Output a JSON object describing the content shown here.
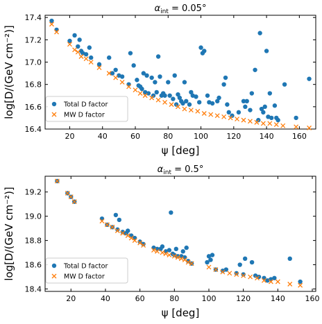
{
  "chart_data": [
    {
      "type": "scatter",
      "title": "α_int = 0.05°",
      "title_prefix": "α",
      "title_sub": "int",
      "title_suffix": " = 0.05°",
      "xlabel": "ψ [deg]",
      "ylabel": "log[D/(GeV cm⁻²)]",
      "xlim": [
        5,
        170
      ],
      "ylim": [
        16.4,
        17.42
      ],
      "xticks": [
        "20",
        "40",
        "60",
        "80",
        "100",
        "120",
        "140",
        "160"
      ],
      "yticks": [
        "16.4",
        "16.6",
        "16.8",
        "17.0",
        "17.2",
        "17.4"
      ],
      "grid": false,
      "legend_position": "lower-left",
      "series": [
        {
          "name": "Total D factor",
          "marker": "circle",
          "color": "#1f77b4",
          "points": [
            [
              9,
              17.37
            ],
            [
              12,
              17.29
            ],
            [
              20,
              17.19
            ],
            [
              23,
              17.24
            ],
            [
              25,
              17.14
            ],
            [
              26,
              17.2
            ],
            [
              27,
              17.1
            ],
            [
              28,
              17.08
            ],
            [
              30,
              17.07
            ],
            [
              32,
              17.13
            ],
            [
              33,
              17.04
            ],
            [
              38,
              16.98
            ],
            [
              44,
              17.04
            ],
            [
              46,
              16.9
            ],
            [
              48,
              16.93
            ],
            [
              50,
              16.88
            ],
            [
              52,
              16.87
            ],
            [
              56,
              16.8
            ],
            [
              57,
              17.08
            ],
            [
              59,
              16.97
            ],
            [
              61,
              16.84
            ],
            [
              62,
              16.79
            ],
            [
              63,
              16.78
            ],
            [
              64,
              16.76
            ],
            [
              65,
              16.9
            ],
            [
              66,
              16.73
            ],
            [
              67,
              16.88
            ],
            [
              68,
              16.72
            ],
            [
              70,
              16.86
            ],
            [
              71,
              16.7
            ],
            [
              72,
              16.82
            ],
            [
              73,
              16.73
            ],
            [
              74,
              17.05
            ],
            [
              75,
              16.87
            ],
            [
              76,
              16.7
            ],
            [
              77,
              16.72
            ],
            [
              78,
              16.7
            ],
            [
              80,
              16.82
            ],
            [
              81,
              16.7
            ],
            [
              83,
              16.67
            ],
            [
              84,
              16.88
            ],
            [
              85,
              16.62
            ],
            [
              86,
              16.71
            ],
            [
              87,
              16.68
            ],
            [
              88,
              16.65
            ],
            [
              89,
              16.63
            ],
            [
              90,
              16.82
            ],
            [
              91,
              16.65
            ],
            [
              93,
              16.62
            ],
            [
              94,
              16.73
            ],
            [
              95,
              16.7
            ],
            [
              97,
              16.69
            ],
            [
              99,
              16.64
            ],
            [
              100,
              17.13
            ],
            [
              101,
              17.08
            ],
            [
              102,
              17.1
            ],
            [
              104,
              16.7
            ],
            [
              105,
              16.64
            ],
            [
              107,
              16.63
            ],
            [
              110,
              16.65
            ],
            [
              111,
              16.68
            ],
            [
              114,
              16.8
            ],
            [
              115,
              16.86
            ],
            [
              116,
              16.62
            ],
            [
              117,
              16.55
            ],
            [
              119,
              16.52
            ],
            [
              123,
              16.55
            ],
            [
              126,
              16.65
            ],
            [
              127,
              16.6
            ],
            [
              128,
              16.65
            ],
            [
              130,
              16.57
            ],
            [
              131,
              16.72
            ],
            [
              133,
              16.93
            ],
            [
              135,
              16.48
            ],
            [
              136,
              17.26
            ],
            [
              137,
              16.58
            ],
            [
              138,
              16.55
            ],
            [
              139,
              16.6
            ],
            [
              140,
              17.1
            ],
            [
              141,
              16.51
            ],
            [
              142,
              16.72
            ],
            [
              143,
              16.5
            ],
            [
              145,
              16.61
            ],
            [
              146,
              16.5
            ],
            [
              147,
              16.48
            ],
            [
              151,
              16.8
            ],
            [
              158,
              16.5
            ],
            [
              166,
              16.85
            ]
          ]
        },
        {
          "name": "MW D factor",
          "marker": "x",
          "color": "#ff7f0e",
          "points": [
            [
              9,
              17.34
            ],
            [
              12,
              17.27
            ],
            [
              20,
              17.16
            ],
            [
              23,
              17.11
            ],
            [
              25,
              17.09
            ],
            [
              27,
              17.05
            ],
            [
              30,
              17.03
            ],
            [
              33,
              17.0
            ],
            [
              38,
              16.95
            ],
            [
              44,
              16.9
            ],
            [
              48,
              16.86
            ],
            [
              52,
              16.82
            ],
            [
              56,
              16.78
            ],
            [
              60,
              16.75
            ],
            [
              63,
              16.72
            ],
            [
              66,
              16.7
            ],
            [
              70,
              16.68
            ],
            [
              74,
              16.66
            ],
            [
              78,
              16.64
            ],
            [
              82,
              16.62
            ],
            [
              86,
              16.6
            ],
            [
              90,
              16.58
            ],
            [
              94,
              16.57
            ],
            [
              98,
              16.56
            ],
            [
              102,
              16.54
            ],
            [
              106,
              16.53
            ],
            [
              110,
              16.52
            ],
            [
              114,
              16.51
            ],
            [
              118,
              16.5
            ],
            [
              122,
              16.49
            ],
            [
              126,
              16.48
            ],
            [
              130,
              16.47
            ],
            [
              134,
              16.46
            ],
            [
              138,
              16.45
            ],
            [
              142,
              16.45
            ],
            [
              146,
              16.44
            ],
            [
              150,
              16.43
            ],
            [
              158,
              16.42
            ],
            [
              166,
              16.41
            ]
          ]
        }
      ]
    },
    {
      "type": "scatter",
      "title": "α_int = 0.5°",
      "title_prefix": "α",
      "title_sub": "int",
      "title_suffix": " = 0.5°",
      "xlabel": "ψ [deg]",
      "ylabel": "log[D/(GeV cm⁻²)]",
      "xlim": [
        5,
        162
      ],
      "ylim": [
        18.38,
        19.33
      ],
      "xticks": [
        "20",
        "40",
        "60",
        "80",
        "100",
        "120",
        "140",
        "160"
      ],
      "yticks": [
        "18.4",
        "18.6",
        "18.8",
        "19.0",
        "19.2"
      ],
      "grid": false,
      "legend_position": "lower-left",
      "series": [
        {
          "name": "Total D factor",
          "marker": "circle",
          "color": "#1f77b4",
          "points": [
            [
              12,
              19.29
            ],
            [
              18,
              19.19
            ],
            [
              20,
              19.16
            ],
            [
              22,
              19.12
            ],
            [
              38,
              18.98
            ],
            [
              41,
              18.93
            ],
            [
              44,
              18.91
            ],
            [
              46,
              19.01
            ],
            [
              47,
              18.89
            ],
            [
              48,
              18.97
            ],
            [
              50,
              18.87
            ],
            [
              52,
              18.86
            ],
            [
              53,
              18.88
            ],
            [
              55,
              18.84
            ],
            [
              57,
              18.82
            ],
            [
              60,
              18.79
            ],
            [
              62,
              18.77
            ],
            [
              68,
              18.74
            ],
            [
              70,
              18.73
            ],
            [
              72,
              18.73
            ],
            [
              73,
              18.75
            ],
            [
              75,
              18.71
            ],
            [
              77,
              18.72
            ],
            [
              78,
              19.03
            ],
            [
              79,
              18.69
            ],
            [
              80,
              18.68
            ],
            [
              81,
              18.73
            ],
            [
              82,
              18.67
            ],
            [
              84,
              18.67
            ],
            [
              85,
              18.71
            ],
            [
              86,
              18.66
            ],
            [
              87,
              18.74
            ],
            [
              88,
              18.63
            ],
            [
              90,
              18.61
            ],
            [
              99,
              18.62
            ],
            [
              100,
              18.67
            ],
            [
              101,
              18.64
            ],
            [
              102,
              18.68
            ],
            [
              104,
              18.56
            ],
            [
              108,
              18.55
            ],
            [
              110,
              18.56
            ],
            [
              116,
              18.53
            ],
            [
              118,
              18.6
            ],
            [
              120,
              18.52
            ],
            [
              121,
              18.65
            ],
            [
              125,
              18.62
            ],
            [
              127,
              18.51
            ],
            [
              129,
              18.5
            ],
            [
              132,
              18.49
            ],
            [
              134,
              18.47
            ],
            [
              136,
              18.48
            ],
            [
              138,
              18.49
            ],
            [
              147,
              18.65
            ],
            [
              153,
              18.46
            ]
          ]
        },
        {
          "name": "MW D factor",
          "marker": "x",
          "color": "#ff7f0e",
          "points": [
            [
              12,
              19.29
            ],
            [
              18,
              19.19
            ],
            [
              20,
              19.16
            ],
            [
              22,
              19.12
            ],
            [
              38,
              18.96
            ],
            [
              41,
              18.93
            ],
            [
              44,
              18.91
            ],
            [
              47,
              18.88
            ],
            [
              50,
              18.86
            ],
            [
              53,
              18.84
            ],
            [
              55,
              18.82
            ],
            [
              57,
              18.8
            ],
            [
              60,
              18.78
            ],
            [
              62,
              18.76
            ],
            [
              68,
              18.72
            ],
            [
              70,
              18.71
            ],
            [
              73,
              18.7
            ],
            [
              75,
              18.69
            ],
            [
              77,
              18.68
            ],
            [
              80,
              18.67
            ],
            [
              82,
              18.66
            ],
            [
              84,
              18.65
            ],
            [
              86,
              18.64
            ],
            [
              88,
              18.62
            ],
            [
              90,
              18.61
            ],
            [
              100,
              18.58
            ],
            [
              104,
              18.56
            ],
            [
              108,
              18.54
            ],
            [
              112,
              18.53
            ],
            [
              116,
              18.52
            ],
            [
              120,
              18.51
            ],
            [
              124,
              18.5
            ],
            [
              128,
              18.49
            ],
            [
              132,
              18.47
            ],
            [
              136,
              18.46
            ],
            [
              140,
              18.46
            ],
            [
              147,
              18.44
            ],
            [
              153,
              18.43
            ]
          ]
        }
      ]
    }
  ]
}
